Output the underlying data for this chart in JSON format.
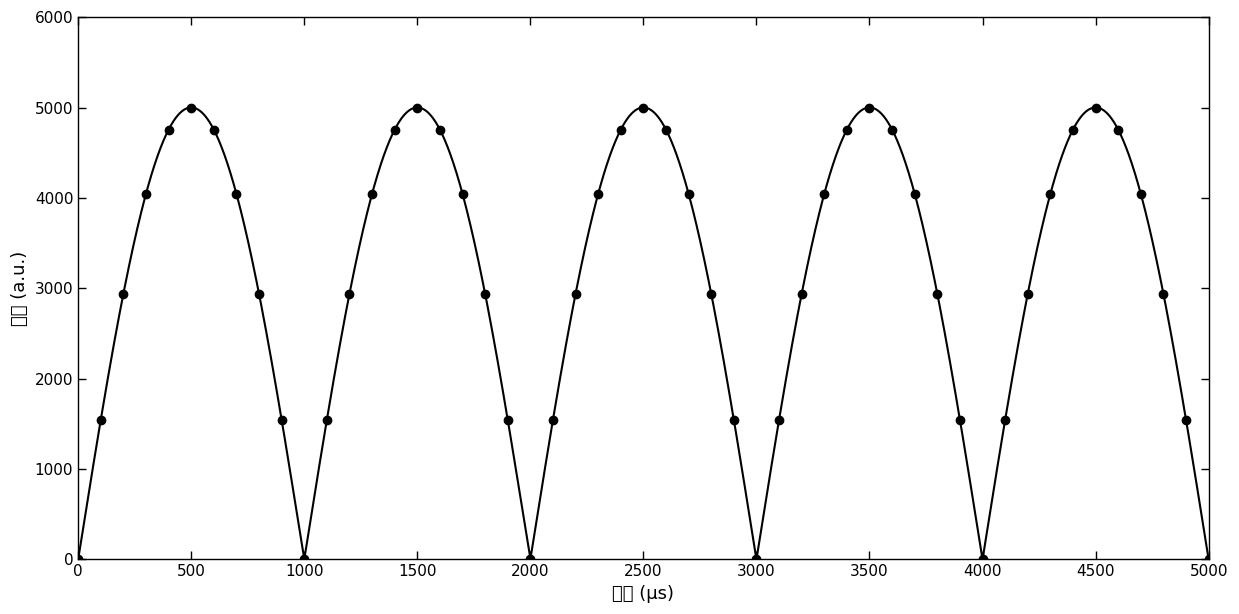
{
  "title": "",
  "xlabel": "时间 (μs)",
  "ylabel": "幅値 (a.u.)",
  "xlim": [
    0,
    5000
  ],
  "ylim": [
    0,
    6000
  ],
  "xticks": [
    0,
    500,
    1000,
    1500,
    2000,
    2500,
    3000,
    3500,
    4000,
    4500,
    5000
  ],
  "yticks": [
    0,
    1000,
    2000,
    3000,
    4000,
    5000,
    6000
  ],
  "amplitude": 5000,
  "period": 1000,
  "num_points": 51,
  "x_start": 0,
  "x_end": 5000,
  "line_color": "#000000",
  "marker_color": "#000000",
  "marker_style": "o",
  "marker_size": 6,
  "line_width": 1.5,
  "bg_color": "#ffffff",
  "figsize": [
    12.39,
    6.14
  ],
  "dpi": 100,
  "xlabel_fontsize": 13,
  "ylabel_fontsize": 13,
  "tick_labelsize": 11
}
